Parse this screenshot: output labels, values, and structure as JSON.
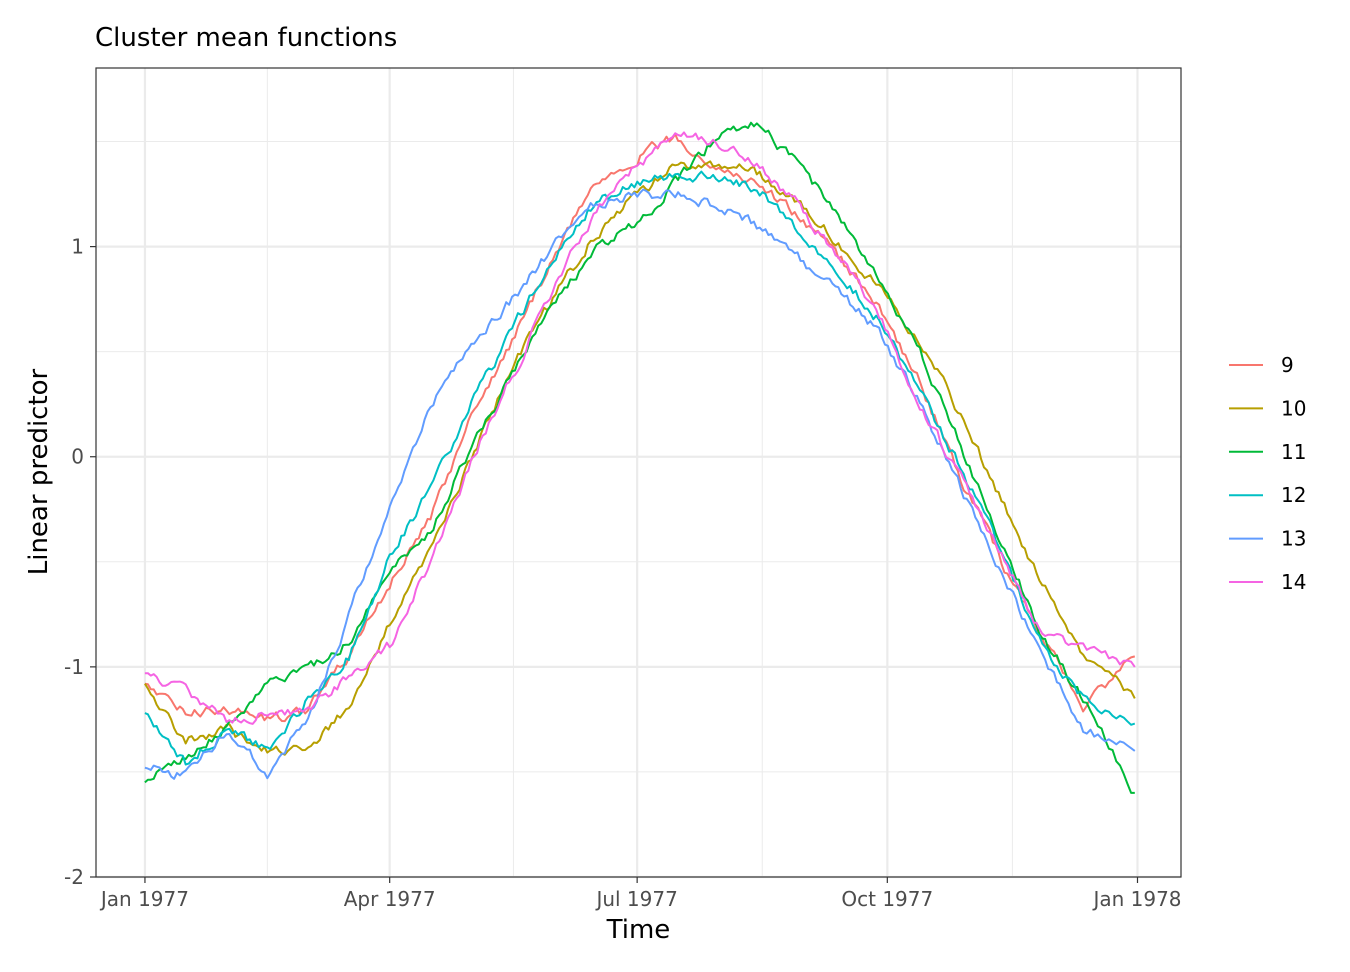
{
  "chart_data": {
    "type": "line",
    "title": "Cluster mean functions",
    "xlabel": "Time",
    "ylabel": "Linear predictor",
    "xlim": [
      "1976-12-14",
      "1978-01-17"
    ],
    "ylim": [
      -2.0,
      1.85
    ],
    "x_ticks": [
      {
        "value": "1977-01-01",
        "label": "Jan 1977"
      },
      {
        "value": "1977-04-01",
        "label": "Apr 1977"
      },
      {
        "value": "1977-07-01",
        "label": "Jul 1977"
      },
      {
        "value": "1977-10-01",
        "label": "Oct 1977"
      },
      {
        "value": "1978-01-01",
        "label": "Jan 1978"
      }
    ],
    "y_ticks": [
      {
        "value": -2,
        "label": "-2"
      },
      {
        "value": -1,
        "label": "-1"
      },
      {
        "value": 0,
        "label": "0"
      },
      {
        "value": 1,
        "label": "1"
      }
    ],
    "grid": true,
    "legend_position": "right",
    "series": [
      {
        "name": "9",
        "color": "#F8766D",
        "points": [
          [
            "1977-01-01",
            -1.08
          ],
          [
            "1977-01-16",
            -1.22
          ],
          [
            "1977-01-31",
            -1.2
          ],
          [
            "1977-02-15",
            -1.25
          ],
          [
            "1977-03-02",
            -1.2
          ],
          [
            "1977-03-17",
            -0.95
          ],
          [
            "1977-04-01",
            -0.6
          ],
          [
            "1977-04-16",
            -0.3
          ],
          [
            "1977-05-01",
            0.2
          ],
          [
            "1977-05-16",
            0.55
          ],
          [
            "1977-05-31",
            0.95
          ],
          [
            "1977-06-15",
            1.3
          ],
          [
            "1977-06-30",
            1.42
          ],
          [
            "1977-07-15",
            1.52
          ],
          [
            "1977-07-30",
            1.38
          ],
          [
            "1977-08-14",
            1.3
          ],
          [
            "1977-08-29",
            1.15
          ],
          [
            "1977-09-13",
            0.95
          ],
          [
            "1977-09-28",
            0.72
          ],
          [
            "1977-10-13",
            0.35
          ],
          [
            "1977-10-28",
            -0.1
          ],
          [
            "1977-11-12",
            -0.5
          ],
          [
            "1977-11-27",
            -0.85
          ],
          [
            "1977-12-12",
            -1.2
          ],
          [
            "1977-12-31",
            -0.95
          ]
        ]
      },
      {
        "name": "10",
        "color": "#B79F00",
        "points": [
          [
            "1977-01-01",
            -1.08
          ],
          [
            "1977-01-16",
            -1.35
          ],
          [
            "1977-01-31",
            -1.3
          ],
          [
            "1977-02-15",
            -1.4
          ],
          [
            "1977-03-02",
            -1.38
          ],
          [
            "1977-03-17",
            -1.2
          ],
          [
            "1977-04-01",
            -0.8
          ],
          [
            "1977-04-16",
            -0.45
          ],
          [
            "1977-05-01",
            0.0
          ],
          [
            "1977-05-16",
            0.42
          ],
          [
            "1977-05-31",
            0.75
          ],
          [
            "1977-06-15",
            1.05
          ],
          [
            "1977-06-30",
            1.25
          ],
          [
            "1977-07-15",
            1.38
          ],
          [
            "1977-07-30",
            1.4
          ],
          [
            "1977-08-14",
            1.35
          ],
          [
            "1977-08-29",
            1.2
          ],
          [
            "1977-09-13",
            1.02
          ],
          [
            "1977-09-28",
            0.8
          ],
          [
            "1977-10-13",
            0.55
          ],
          [
            "1977-10-28",
            0.2
          ],
          [
            "1977-11-12",
            -0.2
          ],
          [
            "1977-11-27",
            -0.6
          ],
          [
            "1977-12-12",
            -0.95
          ],
          [
            "1977-12-31",
            -1.15
          ]
        ]
      },
      {
        "name": "11",
        "color": "#00BA38",
        "points": [
          [
            "1977-01-01",
            -1.55
          ],
          [
            "1977-01-16",
            -1.42
          ],
          [
            "1977-01-31",
            -1.3
          ],
          [
            "1977-02-15",
            -1.08
          ],
          [
            "1977-03-02",
            -1.0
          ],
          [
            "1977-03-17",
            -0.88
          ],
          [
            "1977-04-01",
            -0.55
          ],
          [
            "1977-04-16",
            -0.35
          ],
          [
            "1977-05-01",
            0.05
          ],
          [
            "1977-05-16",
            0.38
          ],
          [
            "1977-05-31",
            0.72
          ],
          [
            "1977-06-15",
            0.98
          ],
          [
            "1977-06-30",
            1.1
          ],
          [
            "1977-07-15",
            1.3
          ],
          [
            "1977-07-30",
            1.52
          ],
          [
            "1977-08-14",
            1.58
          ],
          [
            "1977-08-29",
            1.4
          ],
          [
            "1977-09-13",
            1.15
          ],
          [
            "1977-09-28",
            0.85
          ],
          [
            "1977-10-13",
            0.5
          ],
          [
            "1977-10-28",
            0.05
          ],
          [
            "1977-11-12",
            -0.4
          ],
          [
            "1977-11-27",
            -0.85
          ],
          [
            "1977-12-12",
            -1.15
          ],
          [
            "1977-12-31",
            -1.6
          ]
        ]
      },
      {
        "name": "12",
        "color": "#00BFC4",
        "points": [
          [
            "1977-01-01",
            -1.22
          ],
          [
            "1977-01-16",
            -1.45
          ],
          [
            "1977-01-31",
            -1.3
          ],
          [
            "1977-02-15",
            -1.4
          ],
          [
            "1977-03-02",
            -1.15
          ],
          [
            "1977-03-17",
            -0.95
          ],
          [
            "1977-04-01",
            -0.48
          ],
          [
            "1977-04-16",
            -0.15
          ],
          [
            "1977-05-01",
            0.25
          ],
          [
            "1977-05-16",
            0.6
          ],
          [
            "1977-05-31",
            0.95
          ],
          [
            "1977-06-15",
            1.2
          ],
          [
            "1977-06-30",
            1.3
          ],
          [
            "1977-07-15",
            1.35
          ],
          [
            "1977-07-30",
            1.32
          ],
          [
            "1977-08-14",
            1.28
          ],
          [
            "1977-08-29",
            1.08
          ],
          [
            "1977-09-13",
            0.88
          ],
          [
            "1977-09-28",
            0.65
          ],
          [
            "1977-10-13",
            0.3
          ],
          [
            "1977-10-28",
            -0.05
          ],
          [
            "1977-11-12",
            -0.45
          ],
          [
            "1977-11-27",
            -0.9
          ],
          [
            "1977-12-12",
            -1.15
          ],
          [
            "1977-12-31",
            -1.27
          ]
        ]
      },
      {
        "name": "13",
        "color": "#619CFF",
        "points": [
          [
            "1977-01-01",
            -1.48
          ],
          [
            "1977-01-16",
            -1.52
          ],
          [
            "1977-01-31",
            -1.3
          ],
          [
            "1977-02-15",
            -1.5
          ],
          [
            "1977-03-02",
            -1.25
          ],
          [
            "1977-03-17",
            -0.75
          ],
          [
            "1977-04-01",
            -0.25
          ],
          [
            "1977-04-16",
            0.25
          ],
          [
            "1977-05-01",
            0.55
          ],
          [
            "1977-05-16",
            0.75
          ],
          [
            "1977-05-31",
            1.0
          ],
          [
            "1977-06-15",
            1.2
          ],
          [
            "1977-06-30",
            1.25
          ],
          [
            "1977-07-15",
            1.25
          ],
          [
            "1977-07-30",
            1.2
          ],
          [
            "1977-08-14",
            1.1
          ],
          [
            "1977-08-29",
            0.95
          ],
          [
            "1977-09-13",
            0.78
          ],
          [
            "1977-09-28",
            0.6
          ],
          [
            "1977-10-13",
            0.25
          ],
          [
            "1977-10-28",
            -0.15
          ],
          [
            "1977-11-12",
            -0.55
          ],
          [
            "1977-11-27",
            -0.95
          ],
          [
            "1977-12-12",
            -1.3
          ],
          [
            "1977-12-31",
            -1.4
          ]
        ]
      },
      {
        "name": "14",
        "color": "#F564E3",
        "points": [
          [
            "1977-01-01",
            -1.03
          ],
          [
            "1977-01-16",
            -1.12
          ],
          [
            "1977-01-31",
            -1.25
          ],
          [
            "1977-02-15",
            -1.22
          ],
          [
            "1977-03-02",
            -1.2
          ],
          [
            "1977-03-17",
            -1.05
          ],
          [
            "1977-04-01",
            -0.9
          ],
          [
            "1977-04-16",
            -0.5
          ],
          [
            "1977-05-01",
            -0.02
          ],
          [
            "1977-05-16",
            0.38
          ],
          [
            "1977-05-31",
            0.8
          ],
          [
            "1977-06-15",
            1.15
          ],
          [
            "1977-06-30",
            1.38
          ],
          [
            "1977-07-15",
            1.53
          ],
          [
            "1977-07-30",
            1.5
          ],
          [
            "1977-08-14",
            1.4
          ],
          [
            "1977-08-29",
            1.2
          ],
          [
            "1977-09-13",
            0.95
          ],
          [
            "1977-09-28",
            0.68
          ],
          [
            "1977-10-13",
            0.25
          ],
          [
            "1977-10-28",
            -0.1
          ],
          [
            "1977-11-12",
            -0.45
          ],
          [
            "1977-11-27",
            -0.85
          ],
          [
            "1977-12-12",
            -0.9
          ],
          [
            "1977-12-31",
            -1.0
          ]
        ]
      }
    ]
  }
}
